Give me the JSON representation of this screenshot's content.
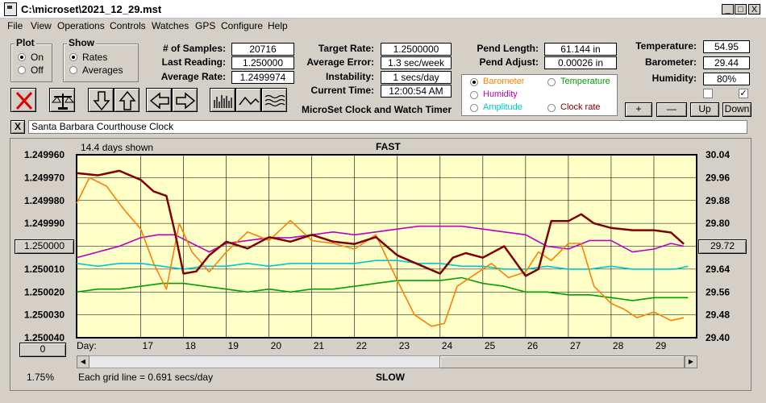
{
  "window": {
    "title": "C:\\microset\\2021_12_29.mst",
    "min": "_",
    "max": "□",
    "close": "X"
  },
  "menu": [
    "File",
    "View",
    "Operations",
    "Controls",
    "Watches",
    "GPS",
    "Configure",
    "Help"
  ],
  "plot_group": {
    "title": "Plot",
    "on": "On",
    "off": "Off",
    "selected": "On"
  },
  "show_group": {
    "title": "Show",
    "rates": "Rates",
    "averages": "Averages",
    "selected": "Rates"
  },
  "stats": {
    "samples_label": "# of Samples:",
    "samples": "20716",
    "last_label": "Last Reading:",
    "last": "1.250000",
    "avg_label": "Average Rate:",
    "avg": "1.2499974"
  },
  "rates": {
    "target_label": "Target Rate:",
    "target": "1.2500000",
    "avgerr_label": "Average Error:",
    "avgerr": "1.3 sec/week",
    "instab_label": "Instability:",
    "instab": "1 secs/day",
    "time_label": "Current Time:",
    "time": "12:00:54 AM"
  },
  "app_caption": "MicroSet Clock and Watch Timer",
  "pend": {
    "length_label": "Pend Length:",
    "length": "61.144 in",
    "adjust_label": "Pend Adjust:",
    "adjust": "0.00026 in"
  },
  "env": {
    "temp_label": "Temperature:",
    "temp": "54.95",
    "baro_label": "Barometer:",
    "baro": "29.44",
    "hum_label": "Humidity:",
    "hum": "80%"
  },
  "right_axis_select": {
    "barometer": "Barometer",
    "temperature": "Temperature",
    "humidity": "Humidity",
    "amplitude": "Amplitude",
    "clock_rate": "Clock rate",
    "selected": "Barometer"
  },
  "colors": {
    "barometer": "#ff8000",
    "temperature": "#00a000",
    "humidity": "#c000c0",
    "amplitude": "#00c8d0",
    "clock_rate": "#800000",
    "plot_bg": "#ffffc8"
  },
  "adjust_buttons": {
    "plus": "+",
    "minus": "—",
    "up": "Up",
    "down": "Down"
  },
  "checkboxes": [
    false,
    true
  ],
  "clock_name": "Santa Barbara Courthouse Clock",
  "clear_btn": "X",
  "chart_header": {
    "days_shown": "14.4 days shown",
    "fast": "FAST",
    "slow": "SLOW"
  },
  "left_center_btn": "1.250000",
  "right_center_btn": "29.72",
  "bottom_left_btn": "0",
  "bottom_left_pct": "1.75%",
  "grid_note": "Each grid line = 0.691 secs/day",
  "day_label": "Day:",
  "chart_data": {
    "type": "line",
    "xlabel": "Day:",
    "x_ticks": [
      17,
      18,
      19,
      20,
      21,
      22,
      23,
      24,
      25,
      26,
      27,
      28,
      29
    ],
    "xlim": [
      15.5,
      30.0
    ],
    "left_ticks": [
      "1.249960",
      "1.249970",
      "1.249980",
      "1.249990",
      "1.250000",
      "1.250010",
      "1.250020",
      "1.250030",
      "1.250040"
    ],
    "ylim_left": [
      1.25004,
      1.24996
    ],
    "right_ticks": [
      "30.04",
      "29.96",
      "29.88",
      "29.80",
      "29.72",
      "29.64",
      "29.56",
      "29.48",
      "29.40"
    ],
    "ylim_right": [
      29.4,
      30.04
    ],
    "grid": true,
    "series": [
      {
        "name": "Clock rate",
        "color": "#800000",
        "axis": "left",
        "x": [
          15.5,
          16.0,
          16.5,
          17.0,
          17.3,
          17.6,
          17.8,
          18.0,
          18.3,
          18.6,
          19.0,
          19.5,
          20.0,
          20.5,
          21.0,
          21.5,
          22.0,
          22.5,
          23.0,
          23.5,
          24.0,
          24.3,
          24.6,
          25.0,
          25.5,
          26.0,
          26.3,
          26.6,
          27.0,
          27.3,
          27.6,
          28.0,
          28.5,
          29.0,
          29.4,
          29.7
        ],
        "y": [
          1.249968,
          1.249969,
          1.249967,
          1.249971,
          1.249976,
          1.249978,
          1.249994,
          1.250012,
          1.250011,
          1.250004,
          1.249998,
          1.250001,
          1.249996,
          1.249998,
          1.249995,
          1.249998,
          1.249999,
          1.249996,
          1.250004,
          1.250008,
          1.250012,
          1.250005,
          1.250003,
          1.250005,
          1.25,
          1.250013,
          1.25001,
          1.249989,
          1.249989,
          1.249986,
          1.24999,
          1.249992,
          1.249993,
          1.249993,
          1.249994,
          1.249999
        ]
      },
      {
        "name": "Barometer",
        "color": "#ff8000",
        "axis": "right",
        "x": [
          15.5,
          15.8,
          16.2,
          16.6,
          17.0,
          17.3,
          17.6,
          17.9,
          18.2,
          18.6,
          19.0,
          19.5,
          20.0,
          20.5,
          21.0,
          21.5,
          22.0,
          22.5,
          23.0,
          23.4,
          23.8,
          24.1,
          24.4,
          24.8,
          25.2,
          25.6,
          26.0,
          26.3,
          26.6,
          27.0,
          27.3,
          27.6,
          28.0,
          28.3,
          28.6,
          29.0,
          29.4,
          29.7
        ],
        "y": [
          29.87,
          29.96,
          29.93,
          29.85,
          29.78,
          29.66,
          29.57,
          29.8,
          29.7,
          29.63,
          29.7,
          29.77,
          29.74,
          29.81,
          29.74,
          29.73,
          29.71,
          29.76,
          29.6,
          29.48,
          29.44,
          29.45,
          29.58,
          29.62,
          29.66,
          29.61,
          29.63,
          29.7,
          29.67,
          29.73,
          29.73,
          29.58,
          29.52,
          29.5,
          29.47,
          29.49,
          29.46,
          29.47
        ]
      },
      {
        "name": "Humidity",
        "color": "#c000c0",
        "axis": "right",
        "x": [
          15.5,
          16.0,
          16.5,
          17.0,
          17.4,
          17.8,
          18.2,
          18.6,
          19.0,
          19.5,
          20.0,
          20.5,
          21.0,
          21.5,
          22.0,
          22.5,
          23.0,
          23.5,
          24.0,
          24.5,
          25.0,
          25.5,
          26.0,
          26.5,
          27.0,
          27.5,
          28.0,
          28.5,
          29.0,
          29.4,
          29.7
        ],
        "y": [
          29.68,
          29.7,
          29.72,
          29.75,
          29.76,
          29.76,
          29.73,
          29.7,
          29.73,
          29.74,
          29.75,
          29.75,
          29.76,
          29.77,
          29.76,
          29.77,
          29.78,
          29.79,
          29.79,
          29.79,
          29.78,
          29.77,
          29.76,
          29.72,
          29.71,
          29.74,
          29.74,
          29.7,
          29.71,
          29.73,
          29.72
        ]
      },
      {
        "name": "Amplitude",
        "color": "#00c8d0",
        "axis": "right",
        "x": [
          15.5,
          16.0,
          16.5,
          17.0,
          17.5,
          18.0,
          18.5,
          19.0,
          19.5,
          20.0,
          20.5,
          21.0,
          21.5,
          22.0,
          22.5,
          23.0,
          23.5,
          24.0,
          24.5,
          25.0,
          25.5,
          26.0,
          26.5,
          27.0,
          27.5,
          28.0,
          28.5,
          29.0,
          29.5,
          29.8
        ],
        "y": [
          29.66,
          29.65,
          29.66,
          29.66,
          29.65,
          29.64,
          29.65,
          29.65,
          29.66,
          29.65,
          29.66,
          29.66,
          29.66,
          29.66,
          29.67,
          29.67,
          29.66,
          29.66,
          29.65,
          29.65,
          29.64,
          29.64,
          29.65,
          29.64,
          29.64,
          29.65,
          29.64,
          29.64,
          29.64,
          29.65
        ]
      },
      {
        "name": "Temperature",
        "color": "#00a000",
        "axis": "right",
        "x": [
          15.5,
          16.0,
          16.5,
          17.0,
          17.5,
          18.0,
          18.5,
          19.0,
          19.5,
          20.0,
          20.5,
          21.0,
          21.5,
          22.0,
          22.5,
          23.0,
          23.5,
          24.0,
          24.5,
          25.0,
          25.5,
          26.0,
          26.5,
          27.0,
          27.5,
          28.0,
          28.5,
          29.0,
          29.5,
          29.8
        ],
        "y": [
          29.56,
          29.57,
          29.57,
          29.58,
          29.59,
          29.59,
          29.58,
          29.57,
          29.56,
          29.57,
          29.56,
          29.57,
          29.57,
          29.58,
          29.59,
          29.6,
          29.6,
          29.6,
          29.61,
          29.59,
          29.58,
          29.56,
          29.56,
          29.55,
          29.55,
          29.54,
          29.53,
          29.54,
          29.54,
          29.54
        ]
      }
    ]
  }
}
